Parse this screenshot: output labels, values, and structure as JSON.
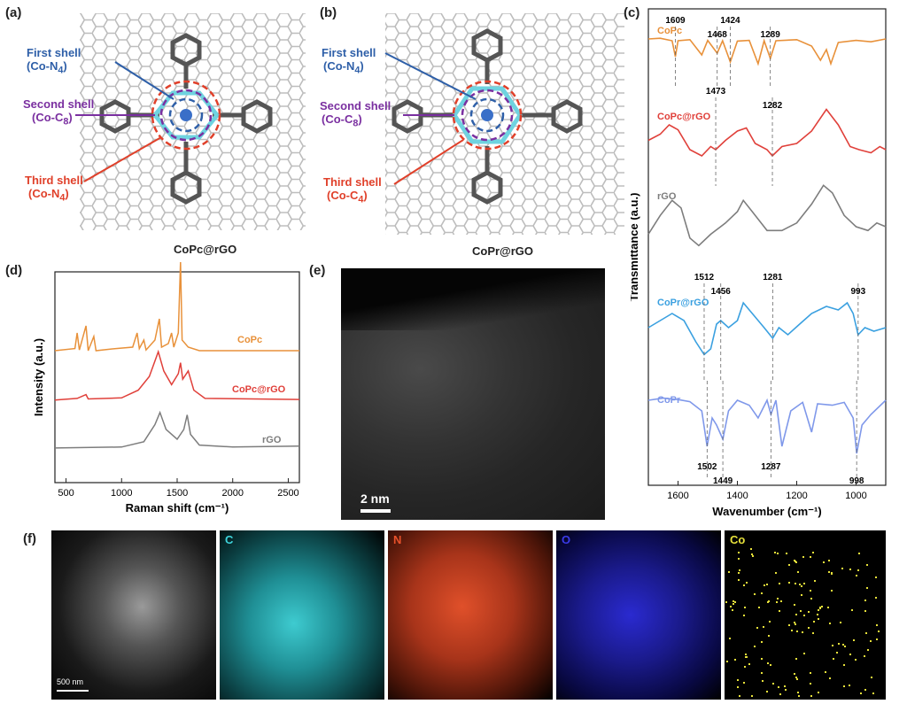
{
  "panels": {
    "a": {
      "label": "(a)",
      "caption": "CoPc@rGO",
      "shell1": "First shell",
      "shell1_sub": "(Co-N",
      "shell1_n": "4",
      "shell2": "Second shell",
      "shell2_sub": "(Co-C",
      "shell2_n": "8",
      "shell3": "Third shell",
      "shell3_sub": "(Co-N",
      "shell3_n": "4"
    },
    "b": {
      "label": "(b)",
      "caption": "CoPr@rGO",
      "shell1": "First shell",
      "shell1_sub": "(Co-N",
      "shell1_n": "4",
      "shell2": "Second shell",
      "shell2_sub": "(Co-C",
      "shell2_n": "8",
      "shell3": "Third shell",
      "shell3_sub": "(Co-C",
      "shell3_n": "4"
    },
    "c": {
      "label": "(c)"
    },
    "d": {
      "label": "(d)"
    },
    "e": {
      "label": "(e)",
      "scale_bar": "2 nm"
    },
    "f": {
      "label": "(f)",
      "scale_bar": "500 nm",
      "maps": [
        "C",
        "N",
        "O",
        "Co"
      ]
    }
  },
  "colors": {
    "CoPc": "#e8913a",
    "CoPc@rGO": "#e0403a",
    "rGO": "#7d7d7d",
    "CoPr@rGO": "#3aa0e0",
    "CoPr": "#7f98ea",
    "shell1": "#2e5fa8",
    "shell2": "#7a2fa0",
    "shell3": "#e0402a"
  },
  "chart_data": [
    {
      "type": "line",
      "id": "ftir",
      "title": "",
      "xlabel": "Wavenumber (cm⁻¹)",
      "ylabel": "Transmittance (a.u.)",
      "xlim": [
        1700,
        900
      ],
      "x_ticks": [
        1600,
        1400,
        1200,
        1000
      ],
      "series": [
        {
          "name": "CoPc",
          "annotations": [
            "1609",
            "1468",
            "1424",
            "1289"
          ],
          "points": [
            [
              1700,
              0.9
            ],
            [
              1660,
              0.92
            ],
            [
              1620,
              0.85
            ],
            [
              1609,
              0.4
            ],
            [
              1600,
              0.85
            ],
            [
              1560,
              0.88
            ],
            [
              1520,
              0.45
            ],
            [
              1500,
              0.86
            ],
            [
              1468,
              0.5
            ],
            [
              1450,
              0.85
            ],
            [
              1424,
              0.25
            ],
            [
              1400,
              0.84
            ],
            [
              1360,
              0.86
            ],
            [
              1330,
              0.2
            ],
            [
              1310,
              0.85
            ],
            [
              1289,
              0.35
            ],
            [
              1270,
              0.85
            ],
            [
              1200,
              0.88
            ],
            [
              1150,
              0.7
            ],
            [
              1120,
              0.3
            ],
            [
              1100,
              0.6
            ],
            [
              1085,
              0.2
            ],
            [
              1060,
              0.8
            ],
            [
              1000,
              0.86
            ],
            [
              950,
              0.82
            ],
            [
              900,
              0.9
            ]
          ]
        },
        {
          "name": "CoPc@rGO",
          "annotations": [
            "1473",
            "1282"
          ],
          "points": [
            [
              1700,
              0.45
            ],
            [
              1660,
              0.55
            ],
            [
              1630,
              0.7
            ],
            [
              1600,
              0.62
            ],
            [
              1560,
              0.3
            ],
            [
              1520,
              0.2
            ],
            [
              1490,
              0.35
            ],
            [
              1473,
              0.3
            ],
            [
              1440,
              0.45
            ],
            [
              1400,
              0.6
            ],
            [
              1370,
              0.65
            ],
            [
              1340,
              0.4
            ],
            [
              1300,
              0.3
            ],
            [
              1282,
              0.2
            ],
            [
              1250,
              0.35
            ],
            [
              1200,
              0.4
            ],
            [
              1150,
              0.6
            ],
            [
              1100,
              0.95
            ],
            [
              1060,
              0.7
            ],
            [
              1020,
              0.35
            ],
            [
              990,
              0.3
            ],
            [
              950,
              0.25
            ],
            [
              920,
              0.35
            ],
            [
              900,
              0.3
            ]
          ]
        },
        {
          "name": "rGO",
          "annotations": [],
          "points": [
            [
              1700,
              0.3
            ],
            [
              1660,
              0.55
            ],
            [
              1620,
              0.75
            ],
            [
              1590,
              0.65
            ],
            [
              1560,
              0.25
            ],
            [
              1530,
              0.15
            ],
            [
              1490,
              0.3
            ],
            [
              1440,
              0.45
            ],
            [
              1400,
              0.6
            ],
            [
              1380,
              0.75
            ],
            [
              1350,
              0.6
            ],
            [
              1300,
              0.35
            ],
            [
              1250,
              0.35
            ],
            [
              1200,
              0.45
            ],
            [
              1150,
              0.7
            ],
            [
              1110,
              0.95
            ],
            [
              1080,
              0.85
            ],
            [
              1040,
              0.55
            ],
            [
              1000,
              0.4
            ],
            [
              960,
              0.35
            ],
            [
              930,
              0.45
            ],
            [
              900,
              0.4
            ]
          ]
        },
        {
          "name": "CoPr@rGO",
          "annotations": [
            "1512",
            "1456",
            "1281",
            "993"
          ],
          "points": [
            [
              1700,
              0.5
            ],
            [
              1660,
              0.6
            ],
            [
              1620,
              0.7
            ],
            [
              1580,
              0.6
            ],
            [
              1540,
              0.3
            ],
            [
              1512,
              0.12
            ],
            [
              1490,
              0.2
            ],
            [
              1470,
              0.55
            ],
            [
              1456,
              0.6
            ],
            [
              1430,
              0.5
            ],
            [
              1400,
              0.6
            ],
            [
              1380,
              0.85
            ],
            [
              1350,
              0.7
            ],
            [
              1310,
              0.5
            ],
            [
              1281,
              0.35
            ],
            [
              1260,
              0.5
            ],
            [
              1230,
              0.4
            ],
            [
              1190,
              0.55
            ],
            [
              1150,
              0.7
            ],
            [
              1100,
              0.8
            ],
            [
              1060,
              0.75
            ],
            [
              1030,
              0.85
            ],
            [
              1010,
              0.7
            ],
            [
              993,
              0.4
            ],
            [
              970,
              0.5
            ],
            [
              940,
              0.45
            ],
            [
              900,
              0.5
            ]
          ]
        },
        {
          "name": "CoPr",
          "annotations": [
            "1502",
            "1449",
            "1287",
            "998"
          ],
          "points": [
            [
              1700,
              0.85
            ],
            [
              1650,
              0.88
            ],
            [
              1600,
              0.86
            ],
            [
              1560,
              0.83
            ],
            [
              1520,
              0.7
            ],
            [
              1502,
              0.2
            ],
            [
              1485,
              0.6
            ],
            [
              1470,
              0.5
            ],
            [
              1449,
              0.3
            ],
            [
              1430,
              0.7
            ],
            [
              1400,
              0.85
            ],
            [
              1360,
              0.78
            ],
            [
              1330,
              0.6
            ],
            [
              1300,
              0.85
            ],
            [
              1287,
              0.65
            ],
            [
              1270,
              0.85
            ],
            [
              1250,
              0.2
            ],
            [
              1220,
              0.7
            ],
            [
              1180,
              0.82
            ],
            [
              1150,
              0.4
            ],
            [
              1130,
              0.8
            ],
            [
              1080,
              0.78
            ],
            [
              1040,
              0.82
            ],
            [
              1010,
              0.6
            ],
            [
              998,
              0.1
            ],
            [
              980,
              0.5
            ],
            [
              950,
              0.65
            ],
            [
              900,
              0.85
            ]
          ]
        }
      ]
    },
    {
      "type": "line",
      "id": "raman",
      "title": "",
      "xlabel": "Raman shift (cm⁻¹)",
      "ylabel": "Intensity (a.u.)",
      "xlim": [
        400,
        2600
      ],
      "x_ticks": [
        500,
        1000,
        1500,
        2000,
        2500
      ],
      "series": [
        {
          "name": "CoPc",
          "points": [
            [
              400,
              0.05
            ],
            [
              580,
              0.08
            ],
            [
              600,
              0.3
            ],
            [
              620,
              0.06
            ],
            [
              680,
              0.4
            ],
            [
              700,
              0.05
            ],
            [
              750,
              0.25
            ],
            [
              770,
              0.05
            ],
            [
              950,
              0.08
            ],
            [
              1100,
              0.1
            ],
            [
              1140,
              0.3
            ],
            [
              1160,
              0.08
            ],
            [
              1200,
              0.2
            ],
            [
              1220,
              0.06
            ],
            [
              1300,
              0.2
            ],
            [
              1340,
              0.5
            ],
            [
              1360,
              0.1
            ],
            [
              1420,
              0.15
            ],
            [
              1450,
              0.3
            ],
            [
              1470,
              0.1
            ],
            [
              1510,
              0.3
            ],
            [
              1530,
              1.3
            ],
            [
              1545,
              0.2
            ],
            [
              1600,
              0.1
            ],
            [
              1700,
              0.05
            ],
            [
              2600,
              0.05
            ]
          ]
        },
        {
          "name": "CoPc@rGO",
          "points": [
            [
              400,
              0.02
            ],
            [
              600,
              0.05
            ],
            [
              680,
              0.12
            ],
            [
              700,
              0.04
            ],
            [
              1000,
              0.06
            ],
            [
              1150,
              0.2
            ],
            [
              1250,
              0.45
            ],
            [
              1330,
              0.9
            ],
            [
              1380,
              0.55
            ],
            [
              1450,
              0.3
            ],
            [
              1510,
              0.5
            ],
            [
              1530,
              0.7
            ],
            [
              1550,
              0.4
            ],
            [
              1600,
              0.55
            ],
            [
              1650,
              0.2
            ],
            [
              1750,
              0.05
            ],
            [
              2600,
              0.03
            ]
          ]
        },
        {
          "name": "rGO",
          "points": [
            [
              400,
              0.02
            ],
            [
              1000,
              0.04
            ],
            [
              1200,
              0.15
            ],
            [
              1300,
              0.5
            ],
            [
              1345,
              0.75
            ],
            [
              1400,
              0.4
            ],
            [
              1500,
              0.2
            ],
            [
              1560,
              0.4
            ],
            [
              1590,
              0.7
            ],
            [
              1620,
              0.3
            ],
            [
              1700,
              0.08
            ],
            [
              2000,
              0.04
            ],
            [
              2600,
              0.06
            ]
          ]
        }
      ]
    }
  ]
}
